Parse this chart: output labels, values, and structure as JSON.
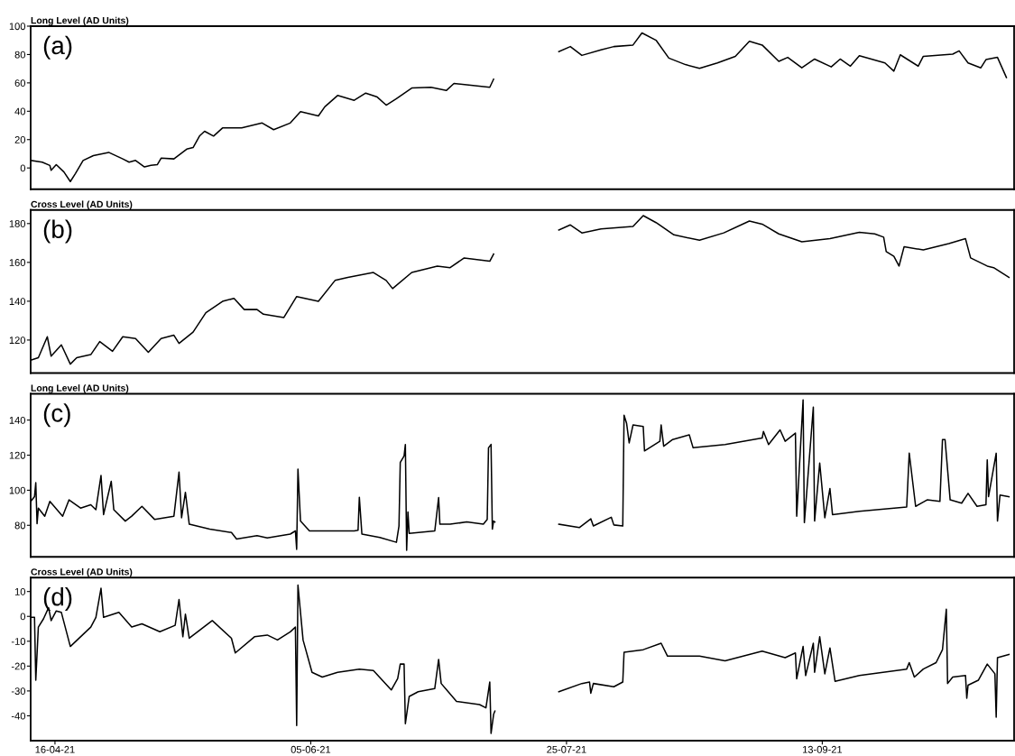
{
  "chart_data": [
    {
      "type": "line",
      "title": "Long Level (AD Units)",
      "annotations": [
        "(a)"
      ],
      "tick_labels": "y",
      "xlim": [
        "2021-04-11T06:00",
        "2021-10-20T12:00"
      ],
      "ylim": [
        -15,
        100
      ],
      "yticks": [
        0,
        20,
        40,
        60,
        80,
        100
      ],
      "series": [
        {
          "color": "#000000",
          "x": [
            "2021-04-11T06:00",
            "2021-04-13T12:00",
            "2021-04-15",
            "2021-04-15T06:00",
            "2021-04-16T06:00",
            "2021-04-17T18:00",
            "2021-04-19",
            "2021-04-20",
            "2021-04-21T12:00",
            "2021-04-23T12:00",
            "2021-04-26T12:00",
            "2021-04-29T06:00",
            "2021-04-30T12:00",
            "2021-05-01T18:00",
            "2021-05-03T12:00",
            "2021-05-04T18:00",
            "2021-05-06",
            "2021-05-06T18:00",
            "2021-05-09T06:00",
            "2021-05-11T18:00",
            "2021-05-13",
            "2021-05-14T06:00",
            "2021-05-15T06:00",
            "2021-05-17",
            "2021-05-18T18:00",
            "2021-05-22T12:00",
            "2021-05-26T12:00",
            "2021-05-28T18:00",
            "2021-06-01",
            "2021-06-03",
            "2021-06-06T12:00",
            "2021-06-07T18:00",
            "2021-06-10T06:00",
            "2021-06-13T12:00",
            "2021-06-15T18:00",
            "2021-06-18",
            "2021-06-19T18:00",
            "2021-06-21T18:00",
            "2021-06-24T18:00",
            "2021-06-28T12:00",
            "2021-07-01T12:00",
            "2021-07-03",
            "2021-07-05T12:00",
            "2021-07-10",
            "2021-07-10T18:00",
            "2021-07-20",
            "2021-07-23T12:00",
            "2021-07-25T18:00",
            "2021-07-28",
            "2021-07-31T18:00",
            "2021-08-03T06:00",
            "2021-08-07",
            "2021-08-08T18:00",
            "2021-08-11T12:00",
            "2021-08-14",
            "2021-08-17T06:00",
            "2021-08-20",
            "2021-08-23T12:00",
            "2021-08-27",
            "2021-08-29T18:00",
            "2021-09-01T06:00",
            "2021-09-04T12:00",
            "2021-09-06T06:00",
            "2021-09-09",
            "2021-09-11T12:00",
            "2021-09-14T18:00",
            "2021-09-16T12:00",
            "2021-09-18T12:00",
            "2021-09-20T06:00",
            "2021-09-25T06:00",
            "2021-09-27",
            "2021-09-28T06:00",
            "2021-10-01T18:00",
            "2021-10-02T18:00",
            "2021-10-08T12:00",
            "2021-10-09T18:00",
            "2021-10-11T12:00",
            "2021-10-14",
            "2021-10-15",
            "2021-10-17T06:00",
            "2021-10-19"
          ],
          "values": [
            5.3,
            4.1,
            1.8,
            -1.6,
            2.3,
            -2.8,
            -9.6,
            -3.9,
            5.3,
            8.7,
            11,
            6.4,
            4.1,
            5.3,
            0.7,
            1.8,
            2.3,
            6.9,
            6.4,
            13.3,
            14.4,
            22.5,
            25.9,
            22.5,
            28.2,
            28.2,
            31.7,
            27,
            31.7,
            39.7,
            36.7,
            43.1,
            51.1,
            47.7,
            52.8,
            50,
            44.3,
            48.9,
            56.4,
            56.9,
            54.6,
            59.6,
            58.7,
            56.9,
            62.6,
            null,
            82.1,
            85.6,
            79.4,
            83.3,
            85.6,
            86.7,
            95.2,
            90.1,
            77.5,
            72.9,
            70.2,
            74.1,
            78.7,
            89.4,
            86.7,
            75.2,
            78,
            70.6,
            76.8,
            71.3,
            76.8,
            71.8,
            79.1,
            74.1,
            68.3,
            79.8,
            71.8,
            78.7,
            80.3,
            82.6,
            74.1,
            70.6,
            76.4,
            78,
            63.8
          ]
        }
      ]
    },
    {
      "type": "line",
      "title": "Cross Level (AD Units)",
      "annotations": [
        "(b)"
      ],
      "tick_labels": "y",
      "xlim": [
        "2021-04-11T06:00",
        "2021-10-20T12:00"
      ],
      "ylim": [
        103,
        187
      ],
      "yticks": [
        120,
        140,
        160,
        180
      ],
      "series": [
        {
          "color": "#000000",
          "x": [
            "2021-04-11T06:00",
            "2021-04-12T18:00",
            "2021-04-14T12:00",
            "2021-04-15T06:00",
            "2021-04-17T06:00",
            "2021-04-19",
            "2021-04-20T06:00",
            "2021-04-23",
            "2021-04-24T18:00",
            "2021-04-27T06:00",
            "2021-04-29T06:00",
            "2021-05-01T18:00",
            "2021-05-04T06:00",
            "2021-05-06T18:00",
            "2021-05-09T06:00",
            "2021-05-10T06:00",
            "2021-05-13",
            "2021-05-15T12:00",
            "2021-05-18T18:00",
            "2021-05-21",
            "2021-05-23",
            "2021-05-25T12:00",
            "2021-05-26T18:00",
            "2021-05-30T18:00",
            "2021-06-02T06:00",
            "2021-06-06T12:00",
            "2021-06-09T18:00",
            "2021-06-12T06:00",
            "2021-06-17T06:00",
            "2021-06-19T18:00",
            "2021-06-21",
            "2021-06-24T18:00",
            "2021-06-29T18:00",
            "2021-07-02T06:00",
            "2021-07-05",
            "2021-07-10",
            "2021-07-10T18:00",
            "2021-07-20",
            "2021-07-23T12:00",
            "2021-07-25T18:00",
            "2021-07-28",
            "2021-07-31T18:00",
            "2021-08-07",
            "2021-08-09",
            "2021-08-11T12:00",
            "2021-08-15",
            "2021-08-20",
            "2021-08-24T18:00",
            "2021-08-29T18:00",
            "2021-09-01T06:00",
            "2021-09-04T12:00",
            "2021-09-09",
            "2021-09-14T12:00",
            "2021-09-20T06:00",
            "2021-09-23T06:00",
            "2021-09-25",
            "2021-09-25T12:00",
            "2021-09-27",
            "2021-09-28",
            "2021-09-29",
            "2021-10-02T18:00",
            "2021-10-07T18:00",
            "2021-10-11",
            "2021-10-12",
            "2021-10-15T06:00",
            "2021-10-16T12:00",
            "2021-10-19T12:00"
          ],
          "values": [
            109.6,
            110.9,
            121.7,
            111.7,
            117.5,
            107.6,
            110.9,
            112.5,
            119.2,
            114.2,
            121.7,
            120.8,
            113.7,
            120.8,
            122.5,
            118.3,
            124.1,
            134.1,
            139.9,
            141.5,
            135.7,
            135.7,
            133.3,
            131.6,
            142.4,
            139.9,
            150.7,
            152.3,
            154.8,
            150.7,
            146.5,
            154.8,
            158.1,
            157.3,
            162.3,
            160.6,
            164.3,
            null,
            176.7,
            179.3,
            175.2,
            177.2,
            178.5,
            184.1,
            180.5,
            174.2,
            171.4,
            175.2,
            181.3,
            179.7,
            174.7,
            170.6,
            172.2,
            175.5,
            174.7,
            173,
            165.6,
            163.1,
            158.1,
            168.1,
            166.4,
            169.7,
            172.2,
            162.3,
            158.1,
            157.3,
            152.3
          ]
        }
      ]
    },
    {
      "type": "line",
      "title": "Long Level (AD Units)",
      "annotations": [
        "(c)"
      ],
      "tick_labels": "y",
      "xlim": [
        "2021-04-11T06:00",
        "2021-10-20T12:00"
      ],
      "ylim": [
        62,
        155
      ],
      "yticks": [
        80,
        100,
        120,
        140
      ],
      "series": [
        {
          "color": "#000000",
          "x": [
            "2021-04-11T06:00",
            "2021-04-12",
            "2021-04-12T06:00",
            "2021-04-12T12:00",
            "2021-04-12T18:00",
            "2021-04-14",
            "2021-04-15",
            "2021-04-17T12:00",
            "2021-04-18T18:00",
            "2021-04-21",
            "2021-04-23",
            "2021-04-24",
            "2021-04-25",
            "2021-04-25T12:00",
            "2021-04-27",
            "2021-04-27T12:00",
            "2021-04-29T18:00",
            "2021-05-01",
            "2021-05-03",
            "2021-05-05T12:00",
            "2021-05-09T06:00",
            "2021-05-10T06:00",
            "2021-05-10T18:00",
            "2021-05-11T12:00",
            "2021-05-12T06:00",
            "2021-05-16T06:00",
            "2021-05-20T12:00",
            "2021-05-21T12:00",
            "2021-05-25T12:00",
            "2021-05-27T12:00",
            "2021-06-01",
            "2021-06-02",
            "2021-06-02T06:00",
            "2021-06-02T12:00",
            "2021-06-03",
            "2021-06-04T18:00",
            "2021-06-07T06:00",
            "2021-06-13T12:00",
            "2021-06-14T06:00",
            "2021-06-14T12:00",
            "2021-06-15",
            "2021-06-18T12:00",
            "2021-06-21T18:00",
            "2021-06-22T06:00",
            "2021-06-22T12:00",
            "2021-06-23T06:00",
            "2021-06-23T12:00",
            "2021-06-23T18:00",
            "2021-06-24",
            "2021-06-24T06:00",
            "2021-06-29T06:00",
            "2021-06-30",
            "2021-06-30T06:00",
            "2021-07-02T06:00",
            "2021-07-05T12:00",
            "2021-07-08T18:00",
            "2021-07-09T12:00",
            "2021-07-09T18:00",
            "2021-07-10T06:00",
            "2021-07-10T12:00",
            "2021-07-10T18:00",
            "2021-07-11",
            "2021-07-20",
            "2021-07-23T12:00",
            "2021-07-27T12:00",
            "2021-07-29T18:00",
            "2021-07-30T06:00",
            "2021-08-02T18:00",
            "2021-08-03T06:00",
            "2021-08-05",
            "2021-08-05T06:00",
            "2021-08-05T18:00",
            "2021-08-06T06:00",
            "2021-08-07",
            "2021-08-09",
            "2021-08-09T06:00",
            "2021-08-12T06:00",
            "2021-08-12T12:00",
            "2021-08-13",
            "2021-08-14T18:00",
            "2021-08-18",
            "2021-08-18T18:00",
            "2021-08-25",
            "2021-09-01T06:00",
            "2021-09-01T12:00",
            "2021-09-02T12:00",
            "2021-09-04T18:00",
            "2021-09-05T18:00",
            "2021-09-07T18:00",
            "2021-09-08",
            "2021-09-09T06:00",
            "2021-09-09T12:00",
            "2021-09-11T06:00",
            "2021-09-11T12:00",
            "2021-09-12T12:00",
            "2021-09-13T12:00",
            "2021-09-14T12:00",
            "2021-09-15",
            "2021-09-20T06:00",
            "2021-09-29T12:00",
            "2021-09-30",
            "2021-10-01T06:00",
            "2021-10-03T12:00",
            "2021-10-06",
            "2021-10-06T12:00",
            "2021-10-07",
            "2021-10-08",
            "2021-10-10T06:00",
            "2021-10-11T12:00",
            "2021-10-13T06:00",
            "2021-10-15",
            "2021-10-15T06:00",
            "2021-10-15T12:00",
            "2021-10-17",
            "2021-10-17T06:00",
            "2021-10-17T18:00",
            "2021-10-19T12:00"
          ],
          "values": [
            93.6,
            96.3,
            104.3,
            80.9,
            89.8,
            85.2,
            93.6,
            85.2,
            94.5,
            89.8,
            91.7,
            88.9,
            108.4,
            86.1,
            105.1,
            88.9,
            82.4,
            85.2,
            90.8,
            83.3,
            85.2,
            110.3,
            84.3,
            98.8,
            80.6,
            77.8,
            75.9,
            72.2,
            74.1,
            72.8,
            75,
            76.8,
            66.3,
            112,
            82.4,
            76.8,
            76.8,
            76.8,
            77.2,
            96,
            75,
            73.1,
            70.3,
            79.6,
            115.8,
            119.6,
            126.1,
            65.7,
            87.6,
            75.4,
            76.8,
            95.8,
            80.6,
            80.6,
            81.9,
            80.6,
            83.3,
            124.2,
            126.1,
            77.8,
            82.4,
            81.9,
            null,
            80.6,
            78.7,
            83.7,
            79.6,
            84.6,
            80.2,
            79.6,
            142.8,
            138.1,
            127,
            137.2,
            136.3,
            122.4,
            127.9,
            137.2,
            125.1,
            128.9,
            131.6,
            124.2,
            126.1,
            129.8,
            133.5,
            126.1,
            134.4,
            127.9,
            132.6,
            85.2,
            151.5,
            81.5,
            147.4,
            82.4,
            115.5,
            84.3,
            101,
            86.1,
            88,
            90.4,
            121.1,
            90.8,
            94.5,
            93.6,
            128.9,
            128.9,
            94.5,
            92.6,
            98.2,
            90.8,
            91.7,
            117.3,
            96.3,
            121.1,
            82.4,
            97.3,
            96.3
          ]
        }
      ]
    },
    {
      "type": "line",
      "title": "Cross Level (AD Units)",
      "annotations": [
        "(d)"
      ],
      "xlim": [
        "2021-04-11T06:00",
        "2021-10-20T12:00"
      ],
      "xticks": [
        {
          "value": "2021-04-16",
          "label": "16-04-21"
        },
        {
          "value": "2021-06-05",
          "label": "05-06-21"
        },
        {
          "value": "2021-07-25",
          "label": "25-07-21"
        },
        {
          "value": "2021-09-13",
          "label": "13-09-21"
        }
      ],
      "ylim": [
        -50,
        15.6
      ],
      "yticks": [
        -40,
        -30,
        -20,
        -10,
        0,
        10
      ],
      "series": [
        {
          "color": "#000000",
          "x": [
            "2021-04-11T06:00",
            "2021-04-12",
            "2021-04-12T06:00",
            "2021-04-12T18:00",
            "2021-04-13T18:00",
            "2021-04-14T18:00",
            "2021-04-15T06:00",
            "2021-04-16T06:00",
            "2021-04-17T06:00",
            "2021-04-19",
            "2021-04-21",
            "2021-04-23",
            "2021-04-24",
            "2021-04-25",
            "2021-04-25T12:00",
            "2021-04-28T12:00",
            "2021-05-01",
            "2021-05-03",
            "2021-05-06T12:00",
            "2021-05-09T12:00",
            "2021-05-10T06:00",
            "2021-05-11",
            "2021-05-11T12:00",
            "2021-05-12T06:00",
            "2021-05-16T18:00",
            "2021-05-20T12:00",
            "2021-05-21T06:00",
            "2021-05-25",
            "2021-05-27T12:00",
            "2021-05-29T12:00",
            "2021-06-01",
            "2021-06-02",
            "2021-06-02T06:00",
            "2021-06-02T12:00",
            "2021-06-03T12:00",
            "2021-06-05T06:00",
            "2021-06-07T06:00",
            "2021-06-10T06:00",
            "2021-06-14T12:00",
            "2021-06-17T06:00",
            "2021-06-20T18:00",
            "2021-06-22",
            "2021-06-22T12:00",
            "2021-06-23T06:00",
            "2021-06-23T12:00",
            "2021-06-24T06:00",
            "2021-06-26",
            "2021-06-29T06:00",
            "2021-06-30",
            "2021-06-30T12:00",
            "2021-07-03T12:00",
            "2021-07-08",
            "2021-07-09T06:00",
            "2021-07-10",
            "2021-07-10T06:00",
            "2021-07-10T18:00",
            "2021-07-11",
            "2021-07-20",
            "2021-07-23T12:00",
            "2021-07-28",
            "2021-07-29T12:00",
            "2021-07-29T18:00",
            "2021-07-30T06:00",
            "2021-08-03T06:00",
            "2021-08-05",
            "2021-08-05T06:00",
            "2021-08-09",
            "2021-08-12T12:00",
            "2021-08-13T18:00",
            "2021-08-20",
            "2021-08-25",
            "2021-09-01T06:00",
            "2021-09-05T18:00",
            "2021-09-07T18:00",
            "2021-09-08",
            "2021-09-09T06:00",
            "2021-09-09T18:00",
            "2021-09-11T06:00",
            "2021-09-11T12:00",
            "2021-09-12T12:00",
            "2021-09-13T12:00",
            "2021-09-14T12:00",
            "2021-09-15T12:00",
            "2021-09-20T06:00",
            "2021-09-29T12:00",
            "2021-09-30",
            "2021-10-01",
            "2021-10-02T18:00",
            "2021-10-05T06:00",
            "2021-10-06T12:00",
            "2021-10-07T06:00",
            "2021-10-07T12:00",
            "2021-10-08T12:00",
            "2021-10-11",
            "2021-10-11T06:00",
            "2021-10-11T12:00",
            "2021-10-13T12:00",
            "2021-10-15T06:00",
            "2021-10-16T18:00",
            "2021-10-17",
            "2021-10-17T06:00",
            "2021-10-19T12:00"
          ],
          "values": [
            -0.4,
            -0.4,
            -25.7,
            -4.3,
            -1,
            3.5,
            -1.7,
            2.2,
            1.6,
            -12.1,
            -8.2,
            -4.3,
            -0.4,
            11.3,
            -0.4,
            1.6,
            -4.3,
            -3,
            -6.2,
            -3.6,
            6.8,
            -8.2,
            0.9,
            -8.8,
            -1.7,
            -8.8,
            -14.7,
            -8.2,
            -7.5,
            -9.5,
            -6.2,
            -4.3,
            -43.9,
            12.6,
            -9.5,
            -22.5,
            -24.4,
            -22.5,
            -21.2,
            -21.8,
            -29.6,
            -25,
            -19.2,
            -19.2,
            -43.2,
            -32.2,
            -30.3,
            -29,
            -17.3,
            -27,
            -34.2,
            -35.5,
            -36.8,
            -26.4,
            -47.1,
            -39.4,
            -38.1,
            null,
            -30.3,
            -27,
            -26.4,
            -30.9,
            -27,
            -28.3,
            -26.4,
            -14.4,
            -13.4,
            -10.8,
            -16,
            -16,
            -17.9,
            -14,
            -16.6,
            -14.7,
            -25.1,
            -12.1,
            -23.8,
            -10.8,
            -22.5,
            -8.2,
            -23.1,
            -12.7,
            -26.1,
            -23.8,
            -21.2,
            -18.6,
            -24.4,
            -21.2,
            -18.6,
            -13.4,
            2.9,
            -27,
            -24.4,
            -23.8,
            -32.9,
            -27.7,
            -25.7,
            -19.2,
            -23.1,
            -40.6,
            -16.6,
            -15.3
          ]
        }
      ]
    }
  ]
}
